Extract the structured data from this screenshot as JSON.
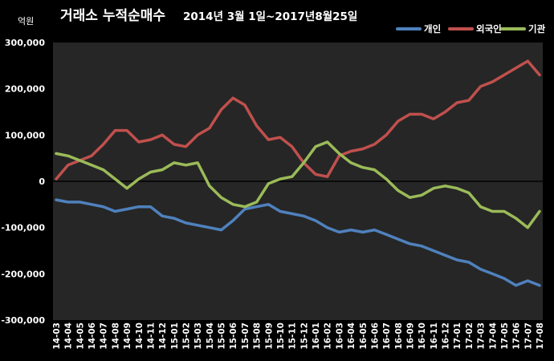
{
  "chart_data": {
    "type": "line",
    "title": "거래소 누적순매수",
    "subtitle": "2014년 3월 1일~2017년8월25일",
    "unit_label": "억원",
    "yticks": [
      "300,000",
      "200,000",
      "100,000",
      "0",
      "-100,000",
      "-200,000",
      "-300,000"
    ],
    "ylim": [
      -300000,
      300000
    ],
    "categories": [
      "14-03",
      "14-04",
      "14-05",
      "14-06",
      "14-07",
      "14-08",
      "14-09",
      "14-10",
      "14-11",
      "14-12",
      "15-01",
      "15-02",
      "15-03",
      "15-04",
      "15-05",
      "15-06",
      "15-07",
      "15-08",
      "15-09",
      "15-10",
      "15-11",
      "15-12",
      "16-01",
      "16-02",
      "16-03",
      "16-04",
      "16-05",
      "16-06",
      "16-07",
      "16-08",
      "16-09",
      "16-10",
      "16-11",
      "16-12",
      "17-01",
      "17-02",
      "17-03",
      "17-04",
      "17-05",
      "17-06",
      "17-07",
      "17-08"
    ],
    "legend_position": "top-right",
    "grid": false,
    "series": [
      {
        "name": "개인",
        "color": "#4f81bd",
        "values": [
          -40000,
          -45000,
          -45000,
          -50000,
          -55000,
          -65000,
          -60000,
          -55000,
          -55000,
          -75000,
          -80000,
          -90000,
          -95000,
          -100000,
          -105000,
          -85000,
          -60000,
          -55000,
          -50000,
          -65000,
          -70000,
          -75000,
          -85000,
          -100000,
          -110000,
          -105000,
          -110000,
          -105000,
          -115000,
          -125000,
          -135000,
          -140000,
          -150000,
          -160000,
          -170000,
          -175000,
          -190000,
          -200000,
          -210000,
          -225000,
          -215000,
          -225000
        ]
      },
      {
        "name": "외국인",
        "color": "#c0504d",
        "values": [
          5000,
          35000,
          45000,
          55000,
          80000,
          110000,
          110000,
          85000,
          90000,
          100000,
          80000,
          75000,
          100000,
          115000,
          155000,
          180000,
          165000,
          120000,
          90000,
          95000,
          75000,
          40000,
          15000,
          10000,
          55000,
          65000,
          70000,
          80000,
          100000,
          130000,
          145000,
          145000,
          135000,
          150000,
          170000,
          175000,
          205000,
          215000,
          230000,
          245000,
          260000,
          230000
        ]
      },
      {
        "name": "기관",
        "color": "#9bbb59",
        "values": [
          60000,
          55000,
          45000,
          35000,
          25000,
          5000,
          -15000,
          5000,
          20000,
          25000,
          40000,
          35000,
          40000,
          -10000,
          -35000,
          -50000,
          -55000,
          -45000,
          -5000,
          5000,
          10000,
          40000,
          75000,
          85000,
          60000,
          40000,
          30000,
          25000,
          5000,
          -20000,
          -35000,
          -30000,
          -15000,
          -10000,
          -15000,
          -25000,
          -55000,
          -65000,
          -65000,
          -80000,
          -100000,
          -65000
        ]
      }
    ]
  }
}
